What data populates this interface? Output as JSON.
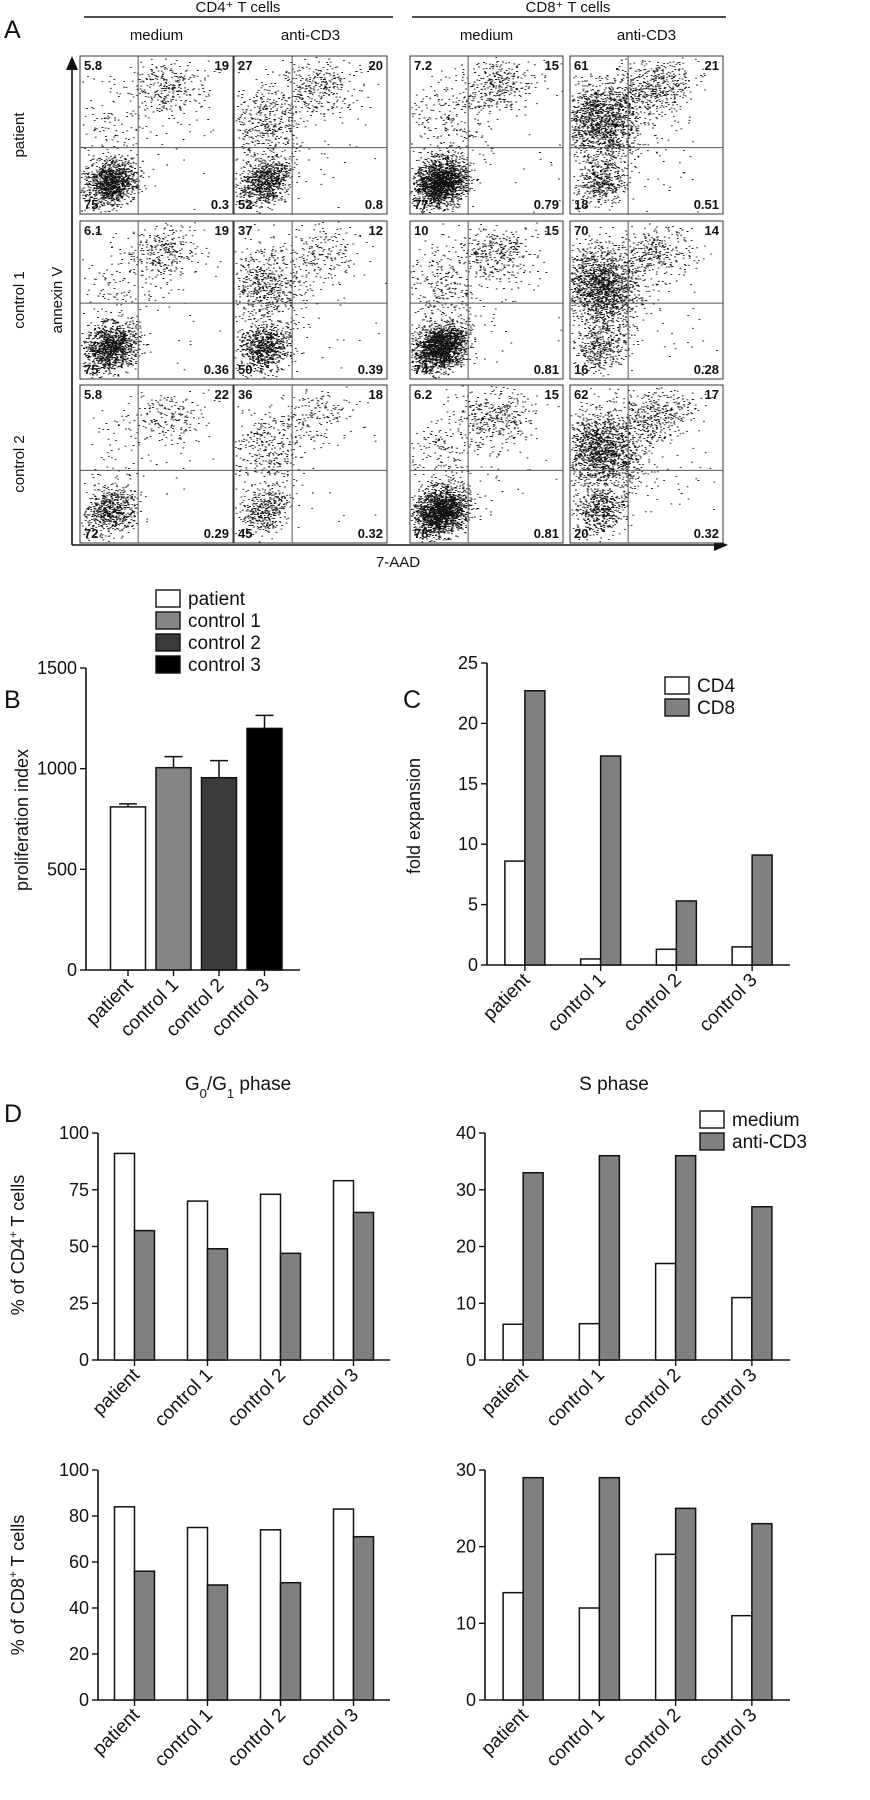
{
  "figure": {
    "panel_labels": [
      "A",
      "B",
      "C",
      "D"
    ],
    "flow": {
      "group_headers": [
        "CD4⁺ T cells",
        "CD8⁺ T cells"
      ],
      "column_headers": [
        "medium",
        "anti-CD3",
        "medium",
        "anti-CD3"
      ],
      "row_headers": [
        "patient",
        "control 1",
        "control 2"
      ],
      "y_axis_label": "annexin V",
      "x_axis_label": "7-AAD"
    }
  },
  "chart_data": [
    {
      "id": "A",
      "type": "scatter",
      "description_note": "",
      "quadrant_values": [
        [
          {
            "UL": "5.8",
            "UR": "19",
            "LL": "75",
            "LR": "0.3"
          },
          {
            "UL": "27",
            "UR": "20",
            "LL": "52",
            "LR": "0.8"
          },
          {
            "UL": "7.2",
            "UR": "15",
            "LL": "77",
            "LR": "0.79"
          },
          {
            "UL": "61",
            "UR": "21",
            "LL": "18",
            "LR": "0.51"
          }
        ],
        [
          {
            "UL": "6.1",
            "UR": "19",
            "LL": "75",
            "LR": "0.36"
          },
          {
            "UL": "37",
            "UR": "12",
            "LL": "50",
            "LR": "0.39"
          },
          {
            "UL": "10",
            "UR": "15",
            "LL": "74",
            "LR": "0.81"
          },
          {
            "UL": "70",
            "UR": "14",
            "LL": "16",
            "LR": "0.28"
          }
        ],
        [
          {
            "UL": "5.8",
            "UR": "22",
            "LL": "72",
            "LR": "0.29"
          },
          {
            "UL": "36",
            "UR": "18",
            "LL": "45",
            "LR": "0.32"
          },
          {
            "UL": "6.2",
            "UR": "15",
            "LL": "78",
            "LR": "0.81"
          },
          {
            "UL": "62",
            "UR": "17",
            "LL": "20",
            "LR": "0.32"
          }
        ]
      ]
    },
    {
      "id": "B",
      "type": "bar",
      "ylabel": "proliferation index",
      "ylim": [
        0,
        1500
      ],
      "yticks": [
        "0",
        "500",
        "1000",
        "1500"
      ],
      "categories": [
        "patient",
        "control 1",
        "control 2",
        "control 3"
      ],
      "values": [
        810,
        1005,
        955,
        1200
      ],
      "errors": [
        15,
        55,
        85,
        65
      ],
      "legend": [
        "patient",
        "control 1",
        "control 2",
        "control 3"
      ],
      "colors": [
        "#ffffff",
        "#858585",
        "#3a3a3a",
        "#000000"
      ]
    },
    {
      "id": "C",
      "type": "bar",
      "ylabel": "fold expansion",
      "ylim": [
        0,
        25
      ],
      "yticks": [
        "0",
        "5",
        "10",
        "15",
        "20",
        "25"
      ],
      "categories": [
        "patient",
        "control 1",
        "control 2",
        "control 3"
      ],
      "series": [
        {
          "name": "CD4",
          "values": [
            8.6,
            0.5,
            1.3,
            1.5
          ],
          "color": "#ffffff"
        },
        {
          "name": "CD8",
          "values": [
            22.7,
            17.3,
            5.3,
            9.1
          ],
          "color": "#808080"
        }
      ]
    },
    {
      "id": "D1",
      "type": "bar",
      "title_parts": [
        "G",
        "0",
        "/G",
        "1",
        " phase"
      ],
      "ylabel_parts": [
        "% of CD4",
        "+",
        " T cells"
      ],
      "ylim": [
        0,
        100
      ],
      "yticks": [
        "0",
        "25",
        "50",
        "75",
        "100"
      ],
      "categories": [
        "patient",
        "control 1",
        "control 2",
        "control 3"
      ],
      "series": [
        {
          "name": "medium",
          "values": [
            91,
            70,
            73,
            79
          ],
          "color": "#ffffff"
        },
        {
          "name": "anti-CD3",
          "values": [
            57,
            49,
            47,
            65
          ],
          "color": "#808080"
        }
      ]
    },
    {
      "id": "D2",
      "type": "bar",
      "title": "S phase",
      "ylim": [
        0,
        40
      ],
      "yticks": [
        "0",
        "10",
        "20",
        "30",
        "40"
      ],
      "categories": [
        "patient",
        "control 1",
        "control 2",
        "control 3"
      ],
      "legend": [
        "medium",
        "anti-CD3"
      ],
      "series": [
        {
          "name": "medium",
          "values": [
            6.3,
            6.4,
            17,
            11
          ],
          "color": "#ffffff"
        },
        {
          "name": "anti-CD3",
          "values": [
            33,
            36,
            36,
            27
          ],
          "color": "#808080"
        }
      ]
    },
    {
      "id": "D3",
      "type": "bar",
      "ylabel_parts": [
        "% of CD8",
        "+",
        " T cells"
      ],
      "ylim": [
        0,
        100
      ],
      "yticks": [
        "0",
        "20",
        "40",
        "60",
        "80",
        "100"
      ],
      "categories": [
        "patient",
        "control 1",
        "control 2",
        "control 3"
      ],
      "series": [
        {
          "name": "medium",
          "values": [
            84,
            75,
            74,
            83
          ],
          "color": "#ffffff"
        },
        {
          "name": "anti-CD3",
          "values": [
            56,
            50,
            51,
            71
          ],
          "color": "#808080"
        }
      ]
    },
    {
      "id": "D4",
      "type": "bar",
      "ylim": [
        0,
        30
      ],
      "yticks": [
        "0",
        "10",
        "20",
        "30"
      ],
      "categories": [
        "patient",
        "control 1",
        "control 2",
        "control 3"
      ],
      "series": [
        {
          "name": "medium",
          "values": [
            14,
            12,
            19,
            11
          ],
          "color": "#ffffff"
        },
        {
          "name": "anti-CD3",
          "values": [
            29,
            29,
            25,
            23
          ],
          "color": "#808080"
        }
      ]
    }
  ]
}
